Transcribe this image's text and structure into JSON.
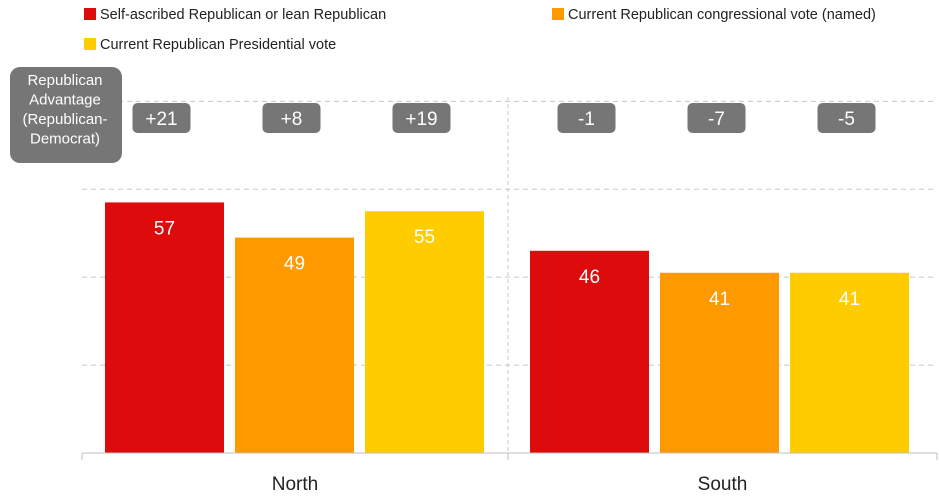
{
  "chart_data": {
    "type": "bar",
    "categories": [
      "North",
      "South"
    ],
    "series": [
      {
        "name": "Self-ascribed Republican or lean Republican",
        "color": "#dd0b0b",
        "values": [
          57,
          46
        ]
      },
      {
        "name": "Current Republican congressional vote (named)",
        "color": "#ff9900",
        "values": [
          49,
          41
        ]
      },
      {
        "name": "Current Republican Presidential vote",
        "color": "#ffcc00",
        "values": [
          55,
          41
        ]
      }
    ],
    "advantage_label": [
      "Republican",
      "Advantage",
      "(Republican-",
      "Democrat)"
    ],
    "advantage": [
      [
        "+21",
        "+8",
        "+19"
      ],
      [
        "-1",
        "-7",
        "-5"
      ]
    ],
    "ylim": [
      0,
      80
    ],
    "grid": true,
    "legend_position": "top",
    "colors": {
      "badge": "#767676",
      "grid": "#c8c8c8",
      "axis": "#bfbfbf"
    }
  }
}
